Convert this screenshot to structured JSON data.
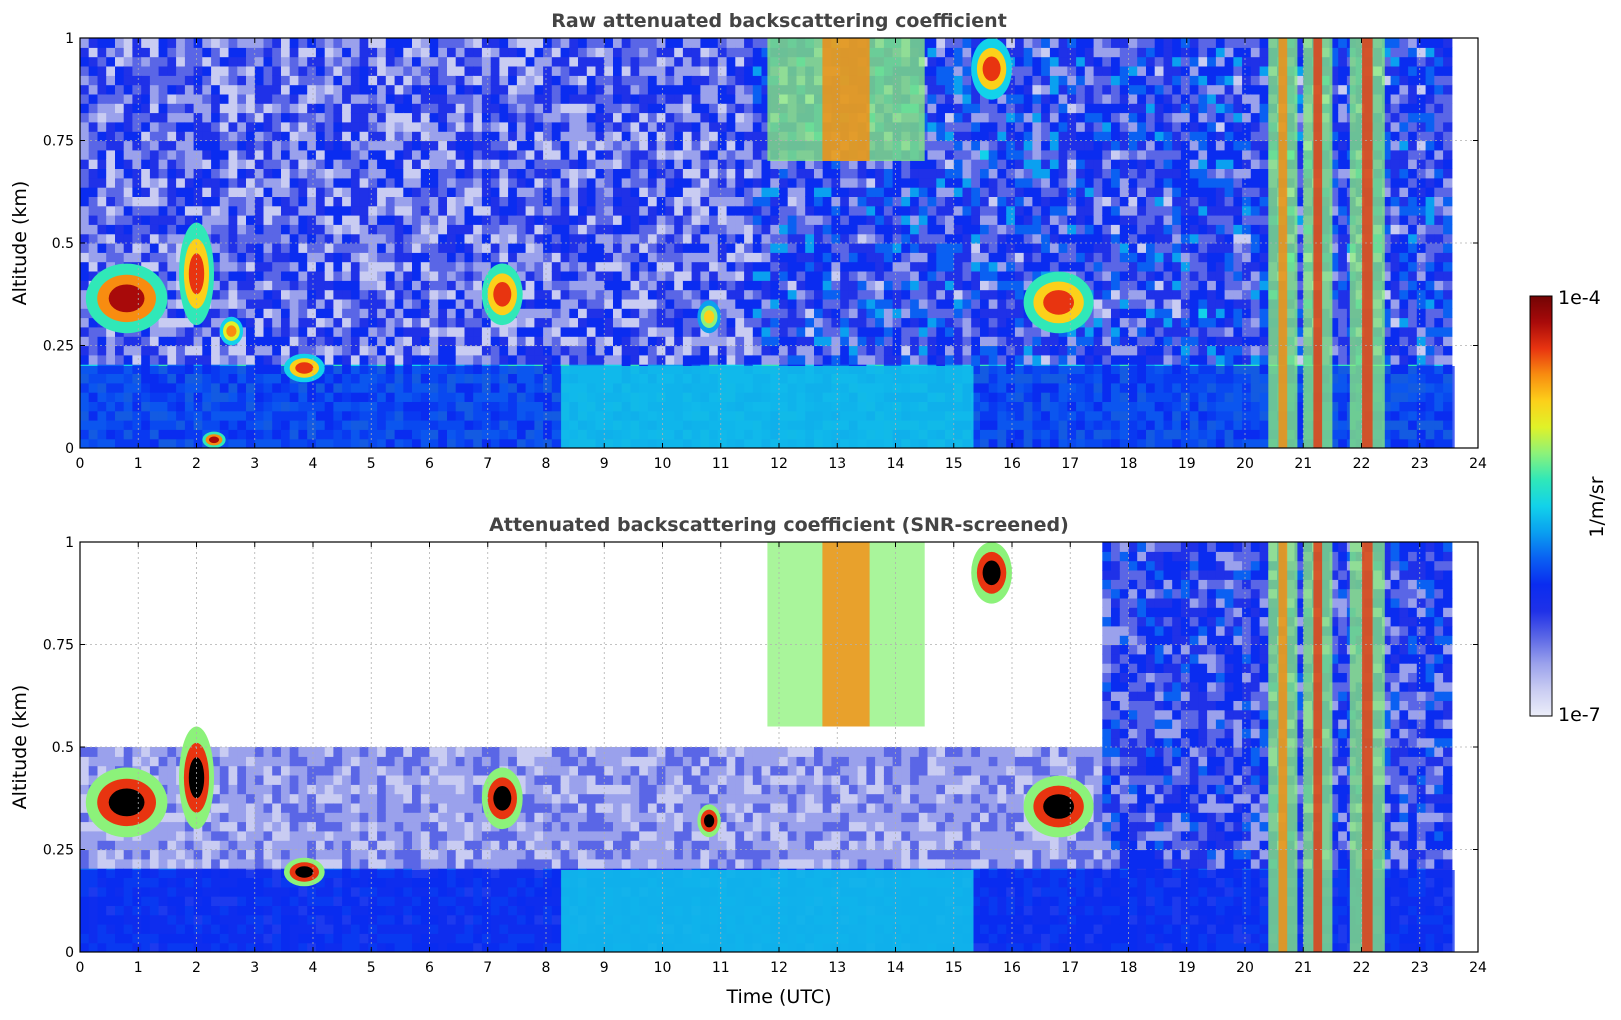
{
  "chart_data": [
    {
      "type": "heatmap",
      "title": "Raw attenuated backscattering coefficient",
      "xlabel": "",
      "ylabel": "Altitude (km)",
      "xlim": [
        0,
        24
      ],
      "ylim": [
        0,
        1
      ],
      "xticks": [
        "0",
        "1",
        "2",
        "3",
        "4",
        "5",
        "6",
        "7",
        "8",
        "9",
        "10",
        "11",
        "12",
        "13",
        "14",
        "15",
        "16",
        "17",
        "18",
        "19",
        "20",
        "21",
        "22",
        "23",
        "24"
      ],
      "yticks": [
        "0",
        "0.25",
        "0.5",
        "0.75",
        "1"
      ],
      "grid": true,
      "screened": false,
      "features": [
        {
          "name": "boundary-layer",
          "x": [
            0,
            23.6
          ],
          "y": [
            0,
            0.2
          ],
          "level": 0.32
        },
        {
          "name": "cloud-early",
          "x": [
            0.1,
            1.5
          ],
          "y": [
            0.28,
            0.45
          ],
          "level": 0.95
        },
        {
          "name": "cloud-2h",
          "x": [
            1.7,
            2.3
          ],
          "y": [
            0.3,
            0.55
          ],
          "level": 0.9
        },
        {
          "name": "cloud-2.6h",
          "x": [
            2.4,
            2.8
          ],
          "y": [
            0.25,
            0.32
          ],
          "level": 0.8
        },
        {
          "name": "cloud-4h",
          "x": [
            3.5,
            4.2
          ],
          "y": [
            0.16,
            0.23
          ],
          "level": 0.85
        },
        {
          "name": "surface-2.2h",
          "x": [
            2.1,
            2.5
          ],
          "y": [
            0,
            0.04
          ],
          "level": 0.95
        },
        {
          "name": "cloud-7h",
          "x": [
            6.9,
            7.6
          ],
          "y": [
            0.3,
            0.45
          ],
          "level": 0.9
        },
        {
          "name": "cloud-10.8h",
          "x": [
            10.6,
            11.0
          ],
          "y": [
            0.28,
            0.36
          ],
          "level": 0.75
        },
        {
          "name": "cloud-16.8h",
          "x": [
            16.2,
            17.4
          ],
          "y": [
            0.28,
            0.43
          ],
          "level": 0.9
        },
        {
          "name": "precip-12-14h",
          "x": [
            11.8,
            14.5
          ],
          "y": [
            0.7,
            1.0
          ],
          "level": 0.6
        },
        {
          "name": "aloft-15.5h",
          "x": [
            15.3,
            16.0
          ],
          "y": [
            0.85,
            1.0
          ],
          "level": 0.85
        },
        {
          "name": "streak-20.7h",
          "x": [
            20.4,
            20.9
          ],
          "y": [
            0,
            1.0
          ],
          "level": 0.6
        },
        {
          "name": "streak-21.3h",
          "x": [
            21.0,
            21.5
          ],
          "y": [
            0,
            1.0
          ],
          "level": 0.65
        },
        {
          "name": "streak-22.1h",
          "x": [
            21.8,
            22.4
          ],
          "y": [
            0,
            1.0
          ],
          "level": 0.65
        }
      ]
    },
    {
      "type": "heatmap",
      "title": "Attenuated backscattering coefficient (SNR-screened)",
      "xlabel": "Time (UTC)",
      "ylabel": "Altitude (km)",
      "xlim": [
        0,
        24
      ],
      "ylim": [
        0,
        1
      ],
      "xticks": [
        "0",
        "1",
        "2",
        "3",
        "4",
        "5",
        "6",
        "7",
        "8",
        "9",
        "10",
        "11",
        "12",
        "13",
        "14",
        "15",
        "16",
        "17",
        "18",
        "19",
        "20",
        "21",
        "22",
        "23",
        "24"
      ],
      "yticks": [
        "0",
        "0.25",
        "0.5",
        "0.75",
        "1"
      ],
      "grid": true,
      "screened": true,
      "features": [
        {
          "name": "boundary-layer",
          "x": [
            0,
            23.6
          ],
          "y": [
            0,
            0.2
          ],
          "level": 0.32
        },
        {
          "name": "cloud-early",
          "x": [
            0.1,
            1.5
          ],
          "y": [
            0.28,
            0.45
          ],
          "level": 1.0
        },
        {
          "name": "cloud-2h",
          "x": [
            1.7,
            2.3
          ],
          "y": [
            0.3,
            0.55
          ],
          "level": 1.0
        },
        {
          "name": "cloud-4h",
          "x": [
            3.5,
            4.2
          ],
          "y": [
            0.16,
            0.23
          ],
          "level": 1.0
        },
        {
          "name": "cloud-7h",
          "x": [
            6.9,
            7.6
          ],
          "y": [
            0.3,
            0.45
          ],
          "level": 1.0
        },
        {
          "name": "cloud-10.8h",
          "x": [
            10.6,
            11.0
          ],
          "y": [
            0.28,
            0.36
          ],
          "level": 1.0
        },
        {
          "name": "cloud-16.8h",
          "x": [
            16.2,
            17.4
          ],
          "y": [
            0.28,
            0.43
          ],
          "level": 1.0
        },
        {
          "name": "precip-12-14h",
          "x": [
            11.8,
            14.5
          ],
          "y": [
            0.55,
            1.0
          ],
          "level": 0.6
        },
        {
          "name": "aloft-15.5h",
          "x": [
            15.3,
            16.0
          ],
          "y": [
            0.85,
            1.0
          ],
          "level": 1.0
        },
        {
          "name": "streak-20.7h",
          "x": [
            20.4,
            20.9
          ],
          "y": [
            0,
            1.0
          ],
          "level": 0.6
        },
        {
          "name": "streak-21.3h",
          "x": [
            21.0,
            21.5
          ],
          "y": [
            0,
            1.0
          ],
          "level": 0.65
        },
        {
          "name": "streak-22.1h",
          "x": [
            21.8,
            22.4
          ],
          "y": [
            0,
            1.0
          ],
          "level": 0.65
        }
      ]
    }
  ],
  "colorbar": {
    "max_label": "1e-4",
    "min_label": "1e-7",
    "unit": "1/m/sr",
    "colors": [
      "#eceef9",
      "#c9ccf2",
      "#9aa1ec",
      "#5a66e6",
      "#1f31e8",
      "#0a2cf0",
      "#0a60f2",
      "#0aa0f0",
      "#12d2ea",
      "#30e8b8",
      "#8cf27a",
      "#e0f228",
      "#fcd01a",
      "#f88c10",
      "#e83410",
      "#a80a0a",
      "#720404"
    ]
  }
}
